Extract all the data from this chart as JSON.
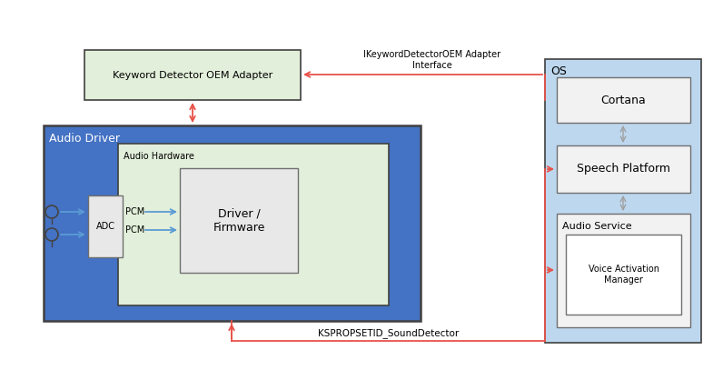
{
  "fig_width": 7.85,
  "fig_height": 4.18,
  "dpi": 100,
  "bg_color": "#ffffff",
  "colors": {
    "audio_driver_bg": "#4472C4",
    "audio_hardware_bg": "#E2EFDA",
    "os_bg": "#BDD7EE",
    "keyword_detector_bg": "#E2EFDA",
    "cortana_bg": "#F2F2F2",
    "speech_platform_bg": "#F2F2F2",
    "audio_service_bg": "#F2F2F2",
    "voice_activation_bg": "#FFFFFF",
    "adc_bg": "#E8E8E8",
    "driver_firmware_bg": "#E8E8E8",
    "red_arrow": "#E8534A",
    "blue_arrow": "#5B9BD5",
    "gray_arrow": "#A0A0A0",
    "border_dark": "#404040",
    "border_medium": "#707070",
    "white_text": "#FFFFFF",
    "black_text": "#000000"
  },
  "labels": {
    "keyword_detector": "Keyword Detector OEM Adapter",
    "audio_driver": "Audio Driver",
    "audio_hardware": "Audio Hardware",
    "driver_firmware": "Driver /\nFirmware",
    "adc": "ADC",
    "pcm1": "PCM",
    "pcm2": "PCM",
    "os": "OS",
    "cortana": "Cortana",
    "speech_platform": "Speech Platform",
    "audio_service": "Audio Service",
    "voice_activation": "Voice Activation\nManager",
    "ikeyword_label": "IKeywordDetectorOEM Adapter\nInterface",
    "kspropsetid_label": "KSPROPSETID_SoundDetector"
  },
  "fontsizes": {
    "label_large": 9,
    "label_medium": 8,
    "label_small": 7,
    "annotation": 7.5
  }
}
